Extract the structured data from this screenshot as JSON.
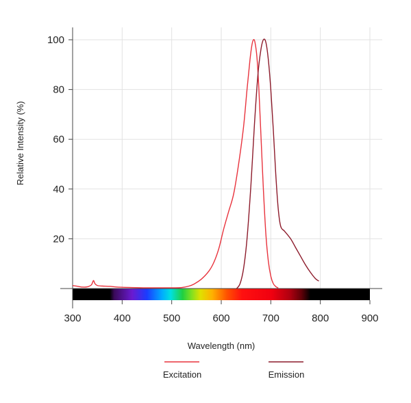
{
  "chart_data": {
    "type": "line",
    "xlabel": "Wavelength (nm)",
    "ylabel": "Relative Intensity (%)",
    "xlim": [
      300,
      900
    ],
    "ylim": [
      0,
      100
    ],
    "x_ticks": [
      "300",
      "400",
      "500",
      "600",
      "700",
      "800",
      "900"
    ],
    "y_ticks": [
      "20",
      "40",
      "60",
      "80",
      "100"
    ],
    "grid": true,
    "legend_position": "bottom",
    "spectrum_bar": true,
    "series": [
      {
        "name": "Excitation",
        "color": "#e8323c",
        "points": [
          [
            300,
            1.2
          ],
          [
            310,
            0.9
          ],
          [
            320,
            0.6
          ],
          [
            330,
            0.7
          ],
          [
            338,
            1.5
          ],
          [
            342,
            3.2
          ],
          [
            345,
            2.0
          ],
          [
            350,
            1.2
          ],
          [
            360,
            1.0
          ],
          [
            375,
            0.9
          ],
          [
            390,
            0.6
          ],
          [
            420,
            0.4
          ],
          [
            450,
            0.3
          ],
          [
            500,
            0.3
          ],
          [
            520,
            0.4
          ],
          [
            535,
            1.0
          ],
          [
            545,
            1.8
          ],
          [
            560,
            3.8
          ],
          [
            575,
            7.0
          ],
          [
            585,
            10.5
          ],
          [
            595,
            16.0
          ],
          [
            605,
            24.0
          ],
          [
            615,
            31.0
          ],
          [
            625,
            38.0
          ],
          [
            635,
            50.0
          ],
          [
            645,
            65.0
          ],
          [
            652,
            80.0
          ],
          [
            658,
            92.0
          ],
          [
            662,
            98.0
          ],
          [
            665,
            100.0
          ],
          [
            668,
            99.0
          ],
          [
            672,
            93.0
          ],
          [
            676,
            80.0
          ],
          [
            680,
            62.0
          ],
          [
            685,
            40.0
          ],
          [
            690,
            22.0
          ],
          [
            695,
            11.0
          ],
          [
            700,
            5.0
          ],
          [
            705,
            2.0
          ],
          [
            710,
            0.8
          ],
          [
            715,
            0.2
          ]
        ]
      },
      {
        "name": "Emission",
        "color": "#8c1a2a",
        "points": [
          [
            631,
            0
          ],
          [
            638,
            2.0
          ],
          [
            645,
            8.0
          ],
          [
            652,
            20.0
          ],
          [
            660,
            42.0
          ],
          [
            667,
            66.0
          ],
          [
            674,
            86.0
          ],
          [
            680,
            96.0
          ],
          [
            685,
            100.0
          ],
          [
            690,
            99.0
          ],
          [
            695,
            92.0
          ],
          [
            700,
            80.0
          ],
          [
            705,
            64.0
          ],
          [
            710,
            46.0
          ],
          [
            715,
            32.0
          ],
          [
            720,
            25.0
          ],
          [
            728,
            23.0
          ],
          [
            740,
            20.0
          ],
          [
            750,
            16.5
          ],
          [
            760,
            13.0
          ],
          [
            770,
            9.5
          ],
          [
            780,
            6.5
          ],
          [
            790,
            4.0
          ],
          [
            797,
            3.0
          ]
        ]
      }
    ]
  }
}
